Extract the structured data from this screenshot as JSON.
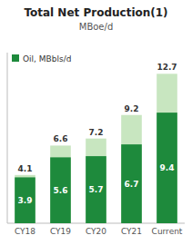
{
  "chart_data": {
    "type": "bar",
    "title": "Total Net Production(1)",
    "subtitle": "MBoe/d",
    "categories": [
      "CY18",
      "CY19",
      "CY20",
      "CY21",
      "Current"
    ],
    "series": [
      {
        "color": "#c8e6c0",
        "values": [
          4.1,
          6.6,
          7.2,
          9.2,
          12.7
        ]
      },
      {
        "name": "Oil, MBbls/d",
        "color": "#1e8a3c",
        "values": [
          3.9,
          5.6,
          5.7,
          6.7,
          9.4
        ]
      }
    ],
    "stacked": false,
    "ylim": [
      0,
      14.5
    ],
    "tick_labels": "x",
    "data_labels": true,
    "legend": "upper left",
    "grid": false
  }
}
